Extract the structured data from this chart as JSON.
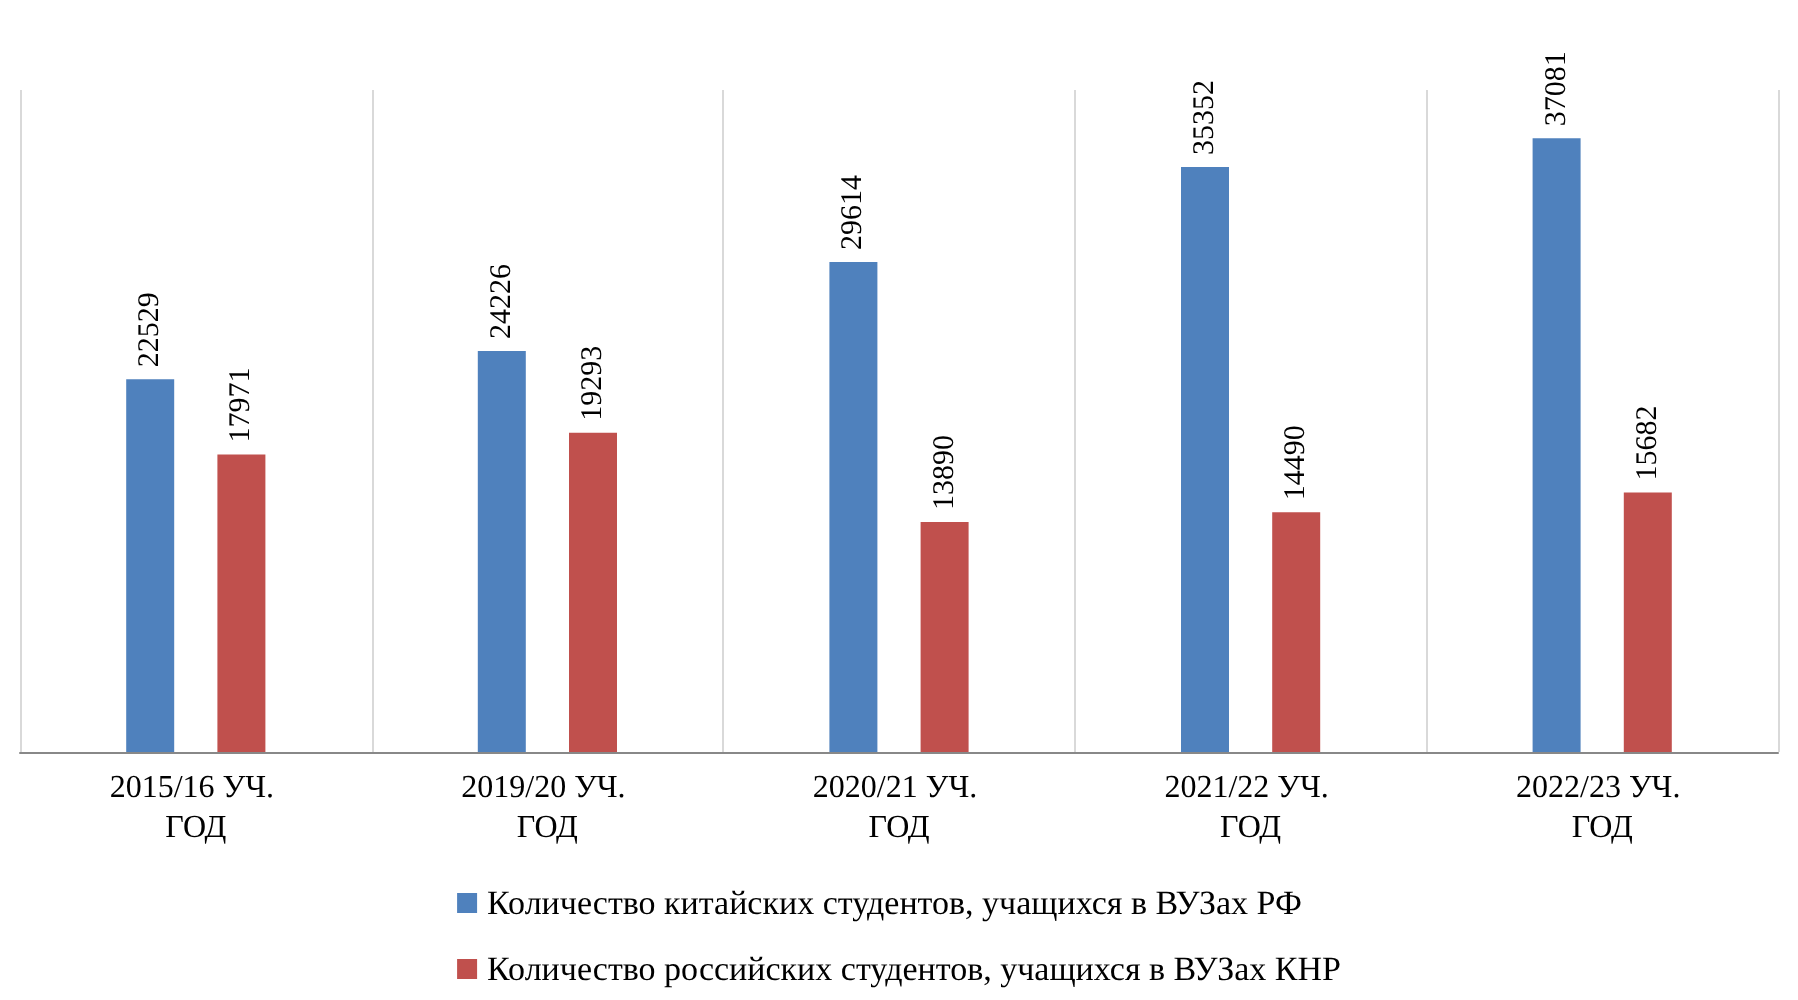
{
  "chart_data": {
    "type": "bar",
    "categories": [
      "2015/16 УЧ. ГОД",
      "2019/20 УЧ. ГОД",
      "2020/21 УЧ. ГОД",
      "2021/22 УЧ. ГОД",
      "2022/23 УЧ. ГОД"
    ],
    "series": [
      {
        "name": "Количество китайских студентов, учащихся в ВУЗах РФ",
        "color": "#4f81bd",
        "values": [
          22529,
          24226,
          29614,
          35352,
          37081
        ]
      },
      {
        "name": "Количество российских студентов, учащихся в ВУЗах КНР",
        "color": "#c0504d",
        "values": [
          17971,
          19293,
          13890,
          14490,
          15682
        ]
      }
    ],
    "data_labels": true,
    "grid": "x",
    "legend": "bottom",
    "tick_labels": "x"
  }
}
